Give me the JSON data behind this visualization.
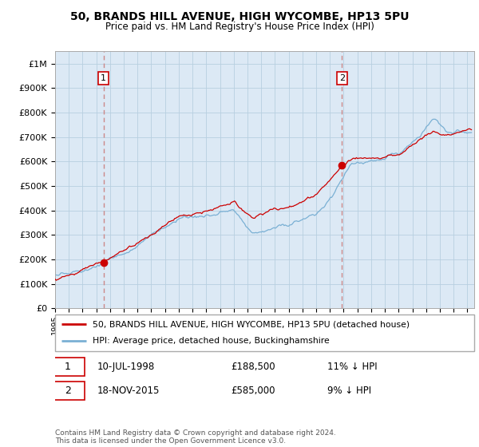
{
  "title": "50, BRANDS HILL AVENUE, HIGH WYCOMBE, HP13 5PU",
  "subtitle": "Price paid vs. HM Land Registry's House Price Index (HPI)",
  "ytick_values": [
    0,
    100000,
    200000,
    300000,
    400000,
    500000,
    600000,
    700000,
    800000,
    900000,
    1000000
  ],
  "ylim": [
    0,
    1050000
  ],
  "xlim_start": 1995.0,
  "xlim_end": 2025.5,
  "sale1_x": 1998.52,
  "sale1_y": 188500,
  "sale2_x": 2015.88,
  "sale2_y": 585000,
  "legend_line1": "50, BRANDS HILL AVENUE, HIGH WYCOMBE, HP13 5PU (detached house)",
  "legend_line2": "HPI: Average price, detached house, Buckinghamshire",
  "annotation1_date": "10-JUL-1998",
  "annotation1_price": "£188,500",
  "annotation1_hpi": "11% ↓ HPI",
  "annotation2_date": "18-NOV-2015",
  "annotation2_price": "£585,000",
  "annotation2_hpi": "9% ↓ HPI",
  "footer": "Contains HM Land Registry data © Crown copyright and database right 2024.\nThis data is licensed under the Open Government Licence v3.0.",
  "color_red": "#cc0000",
  "color_blue": "#7ab0d4",
  "color_dashed": "#cc8888",
  "plot_bg": "#dce9f5",
  "grid_color": "#b8cfe0",
  "fig_bg": "#ffffff"
}
